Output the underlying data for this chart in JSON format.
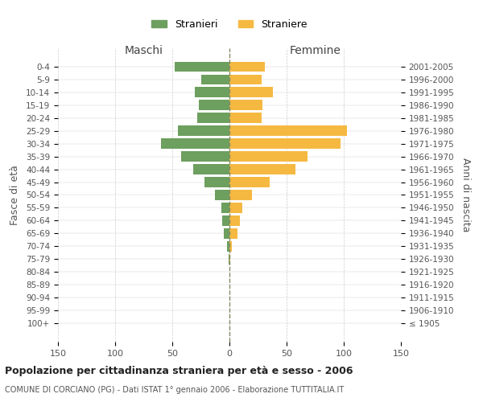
{
  "age_groups": [
    "100+",
    "95-99",
    "90-94",
    "85-89",
    "80-84",
    "75-79",
    "70-74",
    "65-69",
    "60-64",
    "55-59",
    "50-54",
    "45-49",
    "40-44",
    "35-39",
    "30-34",
    "25-29",
    "20-24",
    "15-19",
    "10-14",
    "5-9",
    "0-4"
  ],
  "birth_years": [
    "≤ 1905",
    "1906-1910",
    "1911-1915",
    "1916-1920",
    "1921-1925",
    "1926-1930",
    "1931-1935",
    "1936-1940",
    "1941-1945",
    "1946-1950",
    "1951-1955",
    "1956-1960",
    "1961-1965",
    "1966-1970",
    "1971-1975",
    "1976-1980",
    "1981-1985",
    "1986-1990",
    "1991-1995",
    "1996-2000",
    "2001-2005"
  ],
  "males": [
    0,
    0,
    0,
    0,
    0,
    1,
    2,
    5,
    6,
    7,
    13,
    22,
    32,
    42,
    60,
    45,
    28,
    27,
    30,
    25,
    48
  ],
  "females": [
    0,
    0,
    0,
    0,
    0,
    1,
    2,
    7,
    9,
    11,
    20,
    35,
    58,
    68,
    97,
    103,
    28,
    29,
    38,
    28,
    31
  ],
  "male_color": "#6d9f5e",
  "female_color": "#f5b942",
  "background_color": "#ffffff",
  "grid_color": "#cccccc",
  "title": "Popolazione per cittadinanza straniera per età e sesso - 2006",
  "subtitle": "COMUNE DI CORCIANO (PG) - Dati ISTAT 1° gennaio 2006 - Elaborazione TUTTITALIA.IT",
  "xlabel_left": "Maschi",
  "xlabel_right": "Femmine",
  "ylabel_left": "Fasce di età",
  "ylabel_right": "Anni di nascita",
  "legend_male": "Stranieri",
  "legend_female": "Straniere",
  "xlim": 150,
  "bar_height": 0.8
}
